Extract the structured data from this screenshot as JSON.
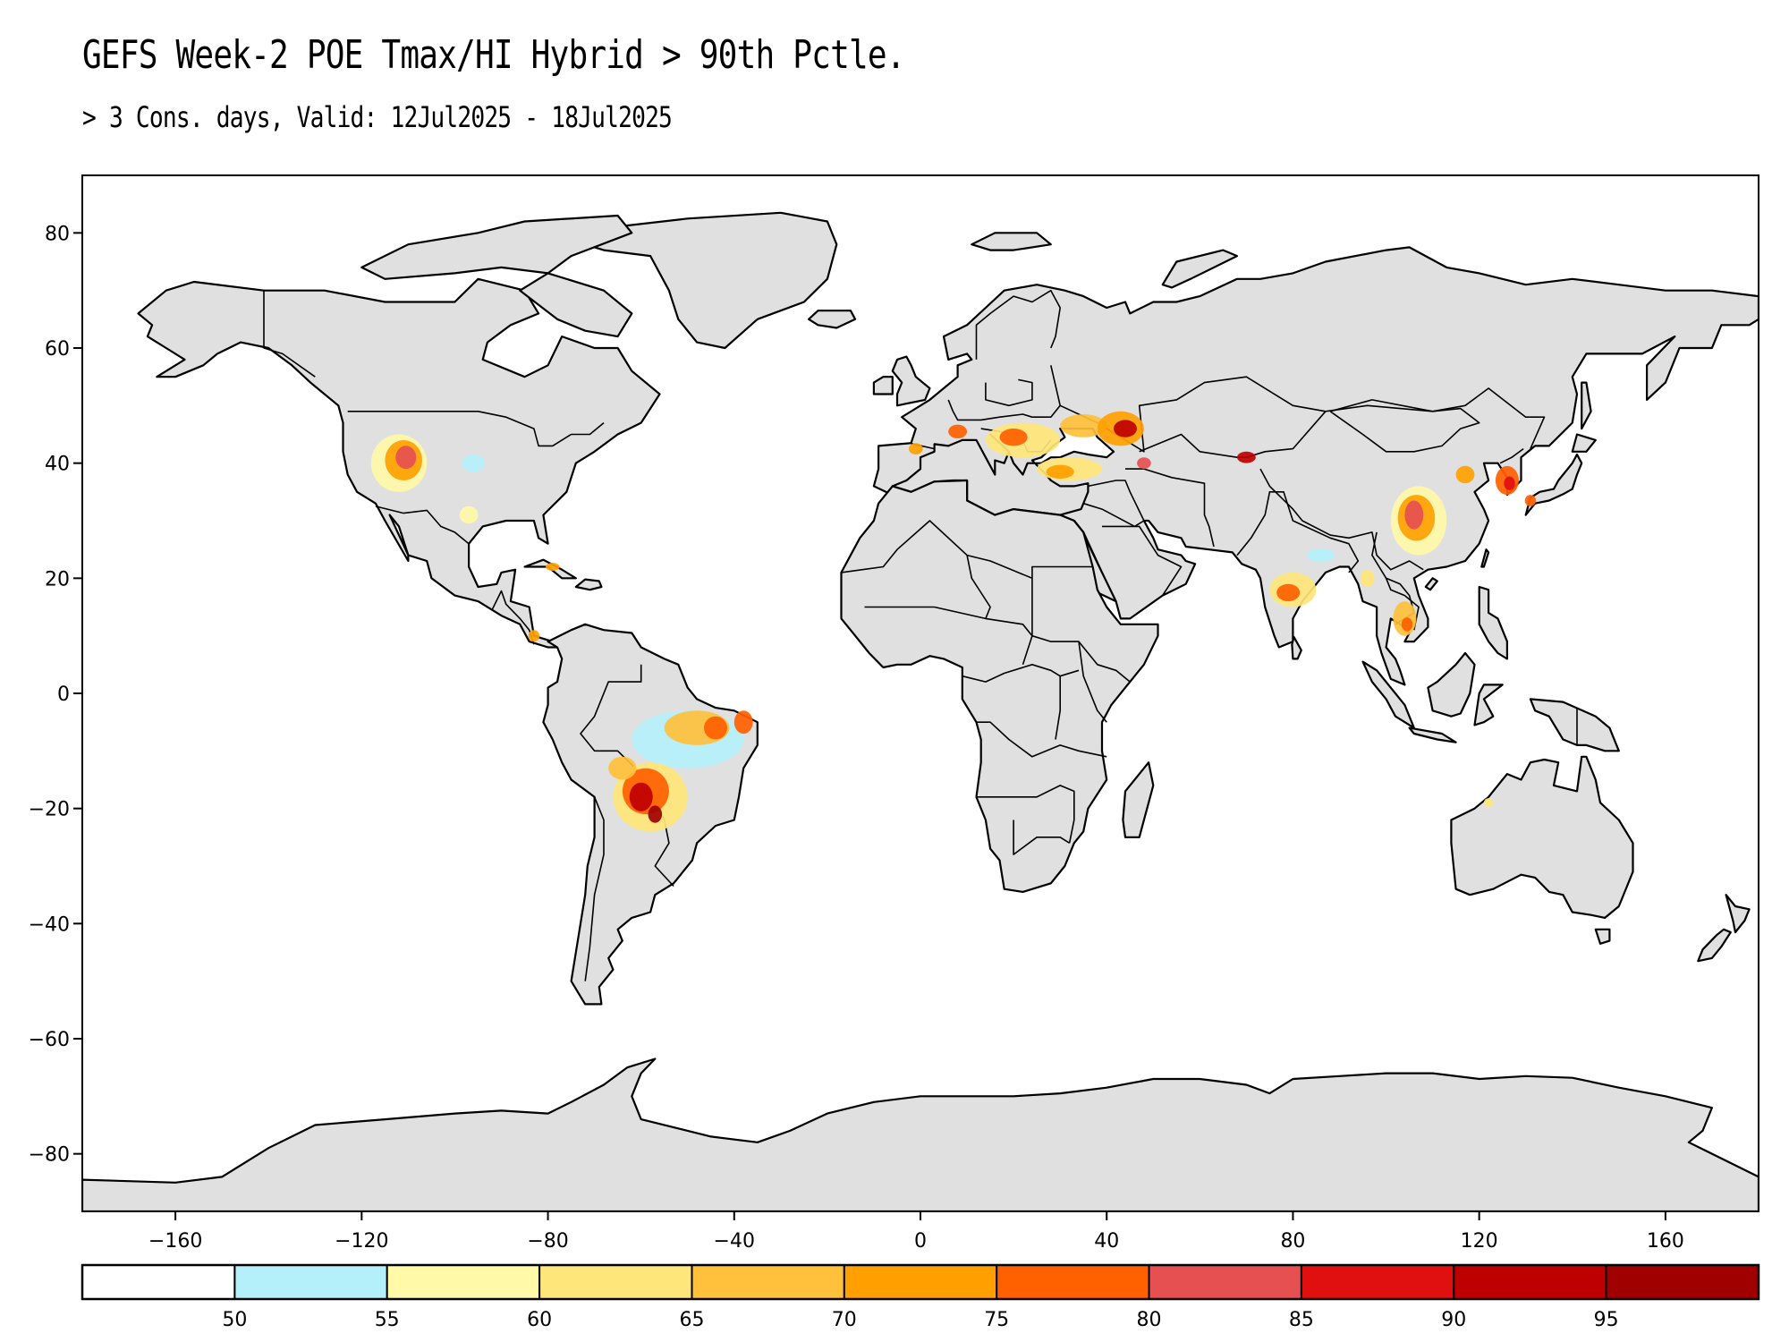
{
  "title": "GEFS Week-2 POE Tmax/HI Hybrid > 90th Pctle.",
  "subtitle": "> 3 Cons. days, Valid: 12Jul2025 - 18Jul2025",
  "map": {
    "projection": "equirectangular",
    "lon_range": [
      -180,
      180
    ],
    "lat_range": [
      -90,
      90
    ],
    "x_ticks": [
      -160,
      -120,
      -80,
      -40,
      0,
      40,
      80,
      120,
      160
    ],
    "y_ticks": [
      80,
      60,
      40,
      20,
      0,
      -20,
      -40,
      -60,
      -80
    ],
    "x_tick_labels": [
      "−160",
      "−120",
      "−80",
      "−40",
      "0",
      "40",
      "80",
      "120",
      "160"
    ],
    "y_tick_labels": [
      "80",
      "60",
      "40",
      "20",
      "0",
      "−20",
      "−40",
      "−60",
      "−80"
    ],
    "land_color": "#e0e0e0",
    "ocean_color": "#ffffff",
    "coastline_color": "#000000"
  },
  "colorbar": {
    "colors": [
      "#ffffff",
      "#b4f0fa",
      "#fff9a8",
      "#ffe67a",
      "#ffc03c",
      "#ffa000",
      "#ff6000",
      "#e65050",
      "#e01010",
      "#bf0000",
      "#a00000"
    ],
    "labels": [
      "50",
      "55",
      "60",
      "65",
      "70",
      "75",
      "80",
      "85",
      "90",
      "95"
    ]
  },
  "chart_data": {
    "type": "heatmap",
    "title": "GEFS Week-2 POE Tmax/HI Hybrid > 90th Pctle.",
    "subtitle": "> 3 Cons. days, Valid: 12Jul2025 - 18Jul2025",
    "xlim": [
      -180,
      180
    ],
    "ylim": [
      -90,
      90
    ],
    "bins": [
      0,
      50,
      55,
      60,
      65,
      70,
      75,
      80,
      85,
      90,
      95,
      100
    ],
    "hotspots": [
      {
        "region": "Great Basin, western US",
        "lon": -111,
        "lat": 40,
        "max_pct": 85
      },
      {
        "region": "Southern Brazil / Paraguay / Bolivia",
        "lon": -60,
        "lat": -18,
        "max_pct": 95
      },
      {
        "region": "Central Brazil",
        "lon": -48,
        "lat": -8,
        "max_pct": 80
      },
      {
        "region": "Southeast Europe / Black Sea",
        "lon": 28,
        "lat": 44,
        "max_pct": 80
      },
      {
        "region": "Southern Russia / Caspian",
        "lon": 43,
        "lat": 46,
        "max_pct": 90
      },
      {
        "region": "Anatolia",
        "lon": 33,
        "lat": 39,
        "max_pct": 70
      },
      {
        "region": "Sichuan Basin, China",
        "lon": 107,
        "lat": 30,
        "max_pct": 85
      },
      {
        "region": "Korea / Northeast China",
        "lon": 125,
        "lat": 38,
        "max_pct": 80
      },
      {
        "region": "Eastern India",
        "lon": 80,
        "lat": 18,
        "max_pct": 75
      },
      {
        "region": "Indochina",
        "lon": 104,
        "lat": 13,
        "max_pct": 75
      }
    ]
  }
}
